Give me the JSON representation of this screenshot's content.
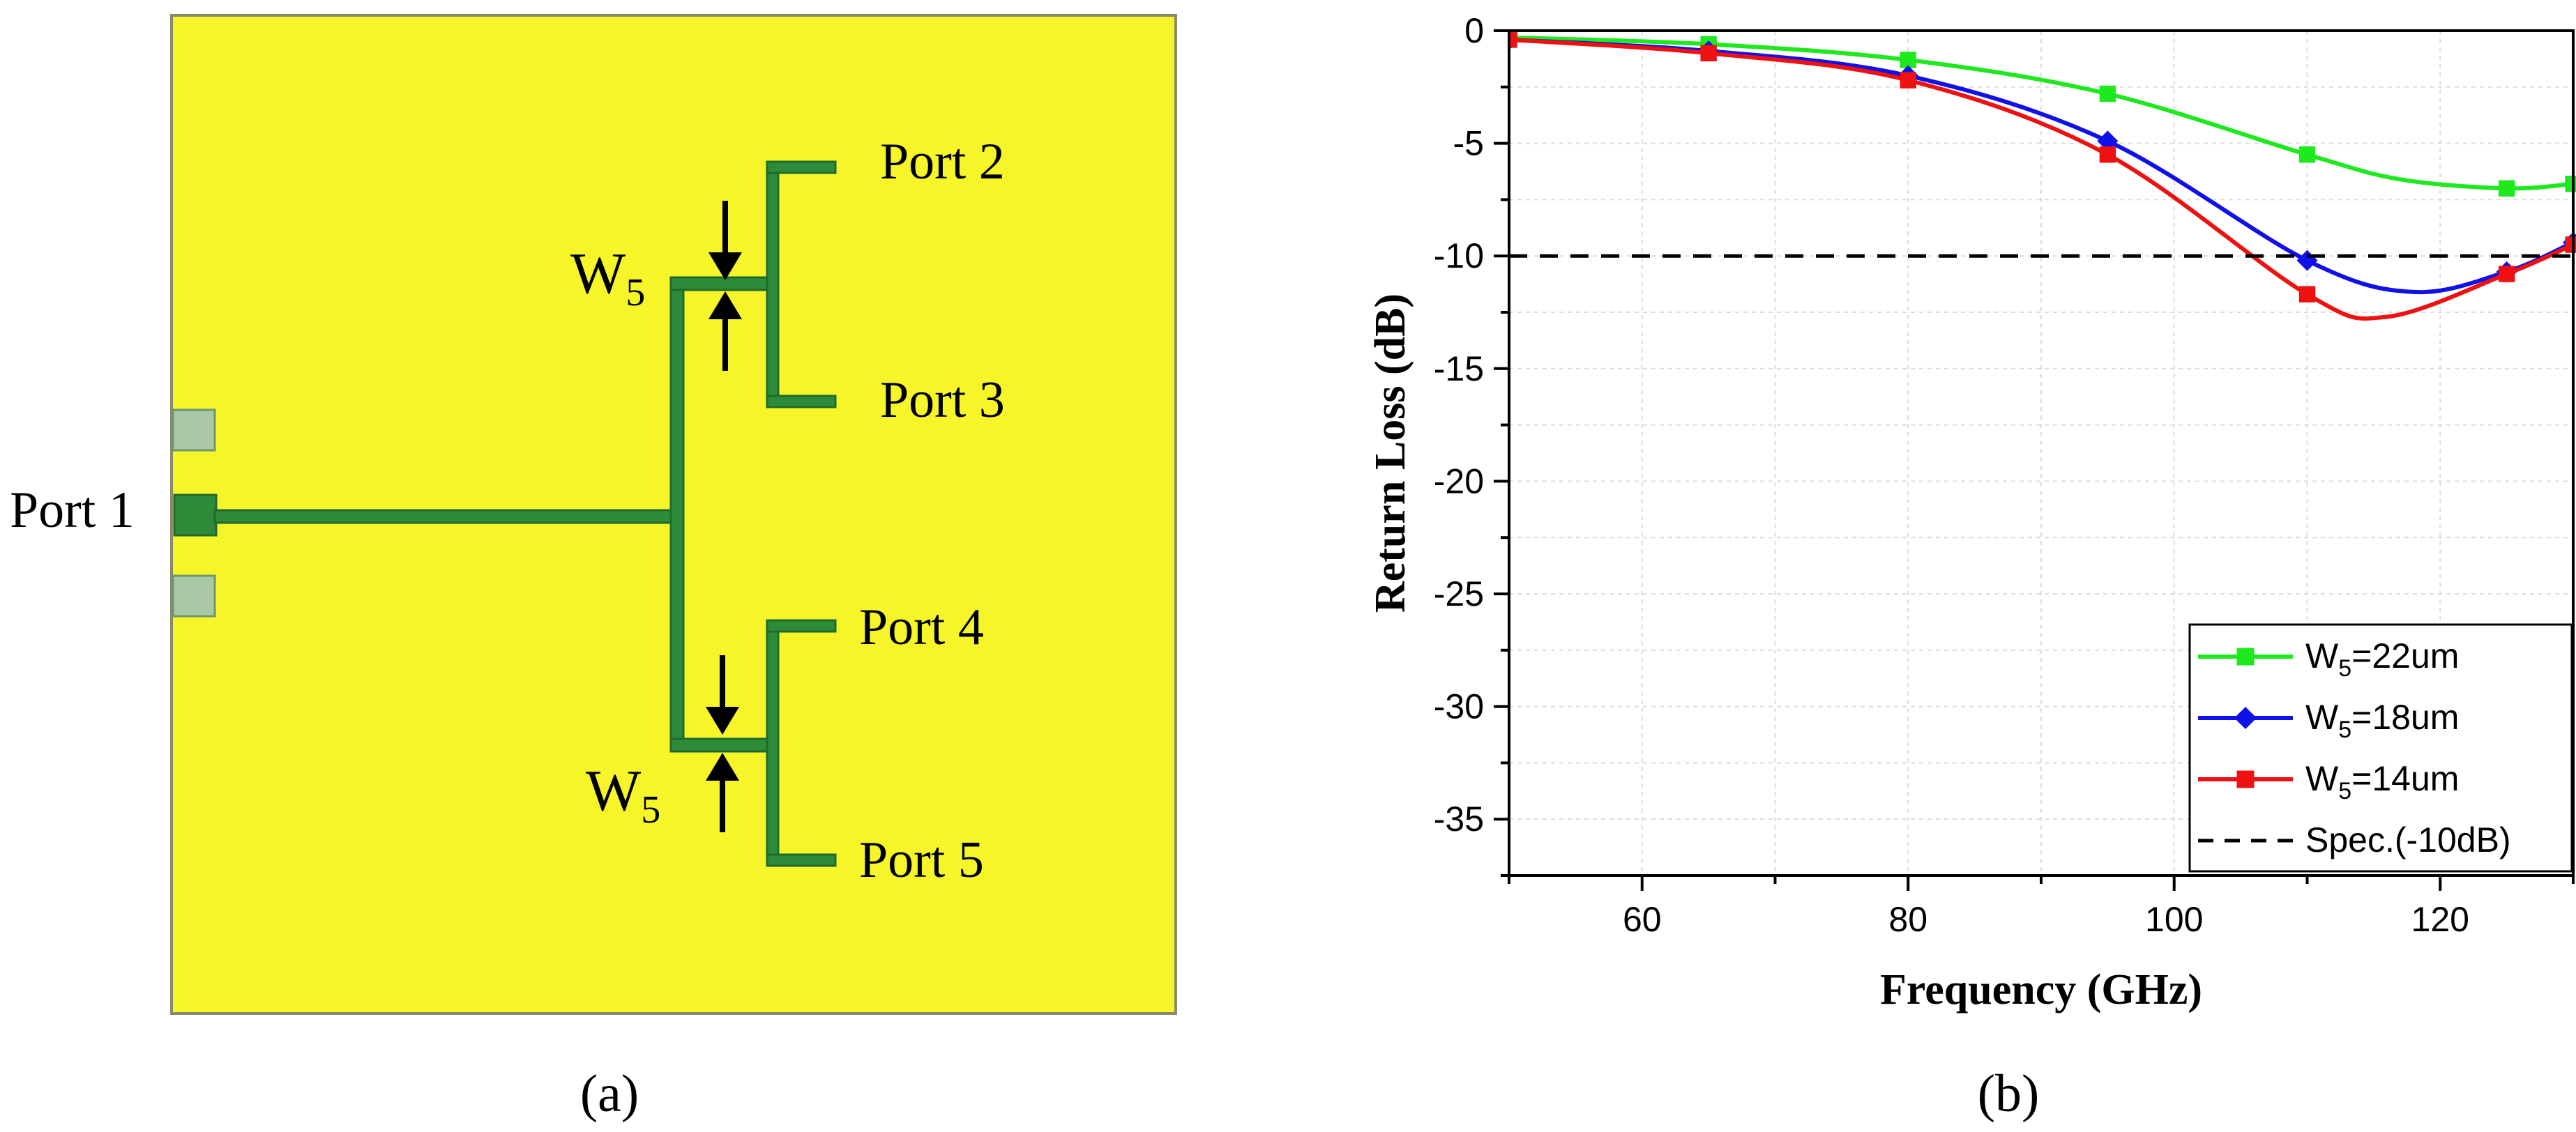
{
  "panel_a": {
    "port_labels": [
      "Port 1",
      "Port 2",
      "Port 3",
      "Port 4",
      "Port 5"
    ],
    "w_label_base": "W",
    "w_label_sub": "5",
    "caption": "(a)",
    "colors": {
      "substrate": "#f6f52a",
      "substrate_edge": "#8a8a6a",
      "trace": "#2e8b3a",
      "trace_edge": "#1f6b2b",
      "pad": "#a8c8a8"
    }
  },
  "panel_b": {
    "caption": "(b)",
    "legend": [
      {
        "prefix": "W",
        "sub": "5",
        "suffix": "=22um"
      },
      {
        "prefix": "W",
        "sub": "5",
        "suffix": "=18um"
      },
      {
        "prefix": "W",
        "sub": "5",
        "suffix": "=14um"
      },
      {
        "prefix": "",
        "sub": "",
        "suffix": "Spec.(-10dB)"
      }
    ]
  },
  "chart_data": {
    "type": "line",
    "xlabel": "Frequency (GHz)",
    "ylabel": "Return Loss (dB)",
    "xlim": [
      50,
      130
    ],
    "ylim": [
      -37.5,
      0
    ],
    "xticks": [
      60,
      80,
      100,
      120
    ],
    "yticks": [
      0,
      -5,
      -10,
      -15,
      -20,
      -25,
      -30,
      -35
    ],
    "grid": true,
    "legend_position": "bottom-right",
    "series": [
      {
        "name": "W5=22um",
        "color": "#1ee81e",
        "marker": "square",
        "x": [
          50,
          65,
          80,
          95,
          110,
          117,
          125,
          130
        ],
        "y": [
          -0.3,
          -0.6,
          -1.3,
          -2.8,
          -5.5,
          -6.6,
          -7.0,
          -6.8
        ],
        "marker_x": [
          50,
          65,
          80,
          95,
          110,
          125,
          130
        ],
        "marker_y": [
          -0.3,
          -0.6,
          -1.3,
          -2.8,
          -5.5,
          -7.0,
          -6.8
        ]
      },
      {
        "name": "W5=18um",
        "color": "#1010e8",
        "marker": "diamond",
        "x": [
          50,
          65,
          80,
          95,
          110,
          118,
          125,
          130
        ],
        "y": [
          -0.4,
          -0.9,
          -2.0,
          -4.9,
          -10.2,
          -11.6,
          -10.7,
          -9.4
        ],
        "marker_x": [
          50,
          65,
          80,
          95,
          110,
          125,
          130
        ],
        "marker_y": [
          -0.4,
          -0.9,
          -2.0,
          -4.9,
          -10.2,
          -10.7,
          -9.4
        ]
      },
      {
        "name": "W5=14um",
        "color": "#ee1111",
        "marker": "square",
        "x": [
          50,
          65,
          80,
          95,
          110,
          116,
          125,
          130
        ],
        "y": [
          -0.4,
          -1.0,
          -2.2,
          -5.5,
          -11.7,
          -12.7,
          -10.8,
          -9.5
        ],
        "marker_x": [
          50,
          65,
          80,
          95,
          110,
          125,
          130
        ],
        "marker_y": [
          -0.4,
          -1.0,
          -2.2,
          -5.5,
          -11.7,
          -10.8,
          -9.5
        ]
      },
      {
        "name": "Spec.(-10dB)",
        "color": "#000000",
        "dashed": true,
        "x": [
          50,
          130
        ],
        "y": [
          -10,
          -10
        ]
      }
    ]
  }
}
